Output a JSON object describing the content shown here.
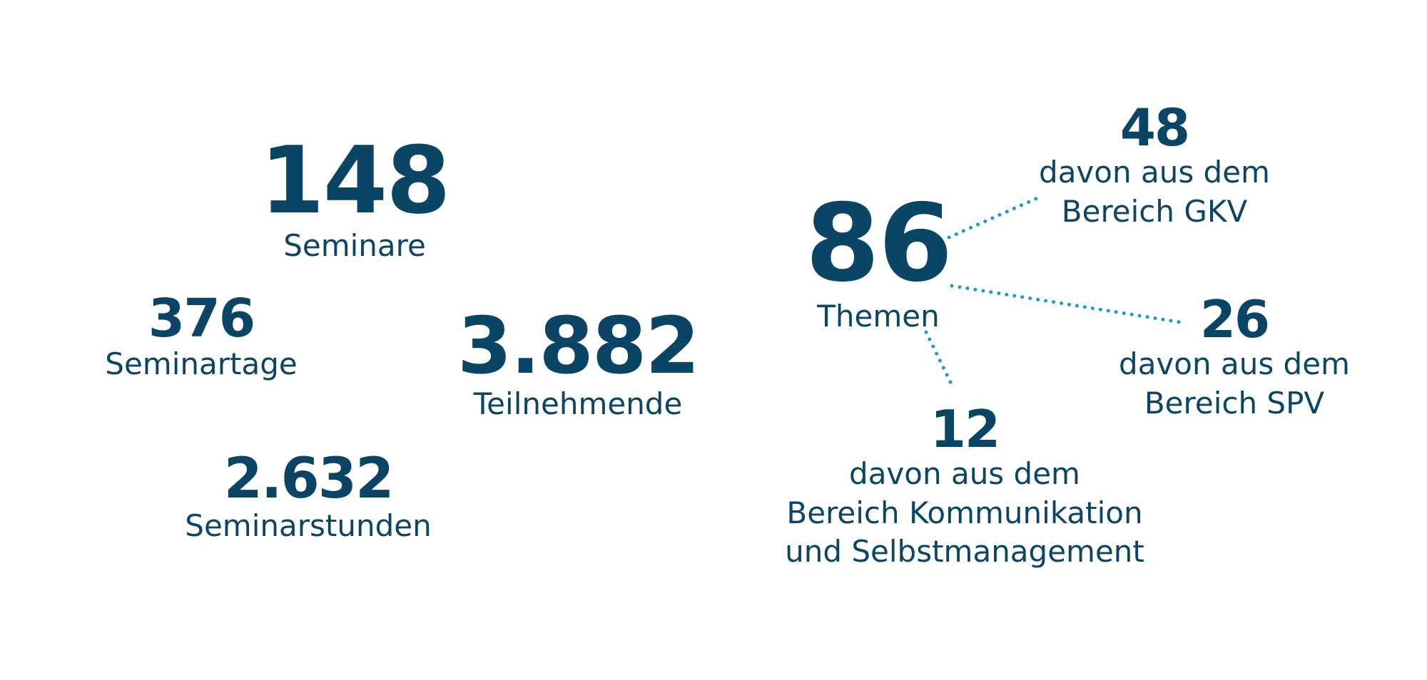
{
  "colors": {
    "text": "#0b4566",
    "connector": "#1a9cc9",
    "background": "#ffffff"
  },
  "stats": {
    "seminars": {
      "value": "148",
      "label": "Seminare"
    },
    "seminar_days": {
      "value": "376",
      "label": "Seminartage"
    },
    "participants": {
      "value": "3.882",
      "label": "Teilnehmende"
    },
    "seminar_hours": {
      "value": "2.632",
      "label": "Seminarstunden"
    }
  },
  "topics": {
    "total": {
      "value": "86",
      "label": "Themen"
    },
    "gkv": {
      "value": "48",
      "line1": "davon aus dem",
      "line2": "Bereich GKV"
    },
    "spv": {
      "value": "26",
      "line1": "davon aus dem",
      "line2": "Bereich SPV"
    },
    "kommunikation": {
      "value": "12",
      "line1": "davon aus dem",
      "line2": "Bereich Kommunikation",
      "line3": "und Selbstmanagement"
    }
  }
}
